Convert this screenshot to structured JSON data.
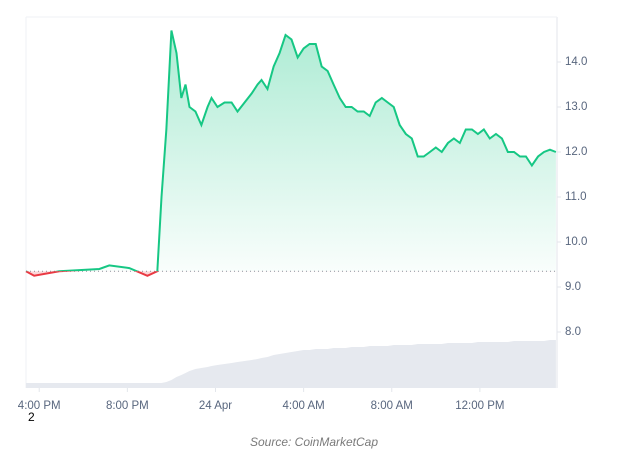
{
  "chart_data": {
    "type": "line",
    "x": [
      -0.6,
      -0.23,
      0.91,
      2.73,
      3.18,
      4.09,
      4.91,
      5.36,
      5.55,
      5.77,
      6.0,
      6.23,
      6.45,
      6.64,
      6.82,
      7.09,
      7.36,
      7.64,
      7.82,
      8.09,
      8.41,
      8.73,
      9.0,
      9.32,
      9.64,
      9.91,
      10.09,
      10.36,
      10.64,
      10.91,
      11.18,
      11.45,
      11.73,
      12.0,
      12.27,
      12.55,
      12.82,
      13.09,
      13.36,
      13.64,
      13.91,
      14.18,
      14.45,
      14.73,
      15.0,
      15.27,
      15.55,
      15.82,
      16.09,
      16.36,
      16.64,
      16.91,
      17.18,
      17.45,
      17.73,
      18.0,
      18.27,
      18.55,
      18.82,
      19.09,
      19.36,
      19.64,
      19.91,
      20.18,
      20.45,
      20.73,
      21.0,
      21.27,
      21.55,
      21.82,
      22.09,
      22.36,
      22.64,
      22.91,
      23.18,
      23.45
    ],
    "values": [
      9.35,
      9.25,
      9.35,
      9.4,
      9.48,
      9.42,
      9.25,
      9.35,
      11.0,
      12.5,
      14.7,
      14.2,
      13.2,
      13.5,
      13.0,
      12.9,
      12.6,
      13.0,
      13.2,
      13.0,
      13.1,
      13.1,
      12.9,
      13.1,
      13.3,
      13.5,
      13.6,
      13.4,
      13.9,
      14.2,
      14.6,
      14.5,
      14.1,
      14.3,
      14.4,
      14.4,
      13.9,
      13.8,
      13.5,
      13.2,
      13.0,
      13.0,
      12.9,
      12.9,
      12.8,
      13.1,
      13.2,
      13.1,
      13.0,
      12.6,
      12.4,
      12.3,
      11.9,
      11.9,
      12.0,
      12.1,
      12.0,
      12.2,
      12.3,
      12.2,
      12.5,
      12.5,
      12.4,
      12.5,
      12.3,
      12.4,
      12.3,
      12.0,
      12.0,
      11.9,
      11.9,
      11.7,
      11.9,
      12.0,
      12.05,
      12.0
    ],
    "volume": [
      5,
      5,
      5,
      5,
      5,
      5,
      5,
      5,
      5,
      6,
      8,
      11,
      13,
      15,
      17,
      19,
      20,
      21,
      22,
      23,
      24,
      25,
      26,
      27,
      28,
      29,
      30,
      31,
      33,
      34,
      35,
      36,
      37,
      38,
      38,
      39,
      39,
      39,
      40,
      40,
      40,
      41,
      41,
      41,
      42,
      42,
      42,
      42,
      43,
      43,
      43,
      43,
      44,
      44,
      44,
      44,
      44,
      45,
      45,
      45,
      45,
      45,
      46,
      46,
      46,
      46,
      46,
      46,
      47,
      47,
      47,
      47,
      47,
      47,
      48,
      48
    ],
    "baseline": 9.35,
    "up_color": "#16c784",
    "down_color": "#ea3943",
    "volume_color": "#e6e9ef",
    "xlim": [
      -0.6,
      23.5
    ],
    "xticks": [
      {
        "value": 0,
        "label": "4:00 PM"
      },
      {
        "value": 4,
        "label": "8:00 PM"
      },
      {
        "value": 8,
        "label": "24 Apr"
      },
      {
        "value": 12,
        "label": "4:00 AM"
      },
      {
        "value": 16,
        "label": "8:00 AM"
      },
      {
        "value": 20,
        "label": "12:00 PM"
      }
    ],
    "ylim": [
      6.8,
      15
    ],
    "yticks": [
      {
        "value": 8,
        "label": "8.0"
      },
      {
        "value": 9,
        "label": "9.0"
      },
      {
        "value": 10,
        "label": "10.0"
      },
      {
        "value": 11,
        "label": "11.0"
      },
      {
        "value": 12,
        "label": "12.0"
      },
      {
        "value": 13,
        "label": "13.0"
      },
      {
        "value": 14,
        "label": "14.0"
      }
    ],
    "annotation": "2",
    "source": "Source: CoinMarketCap"
  }
}
